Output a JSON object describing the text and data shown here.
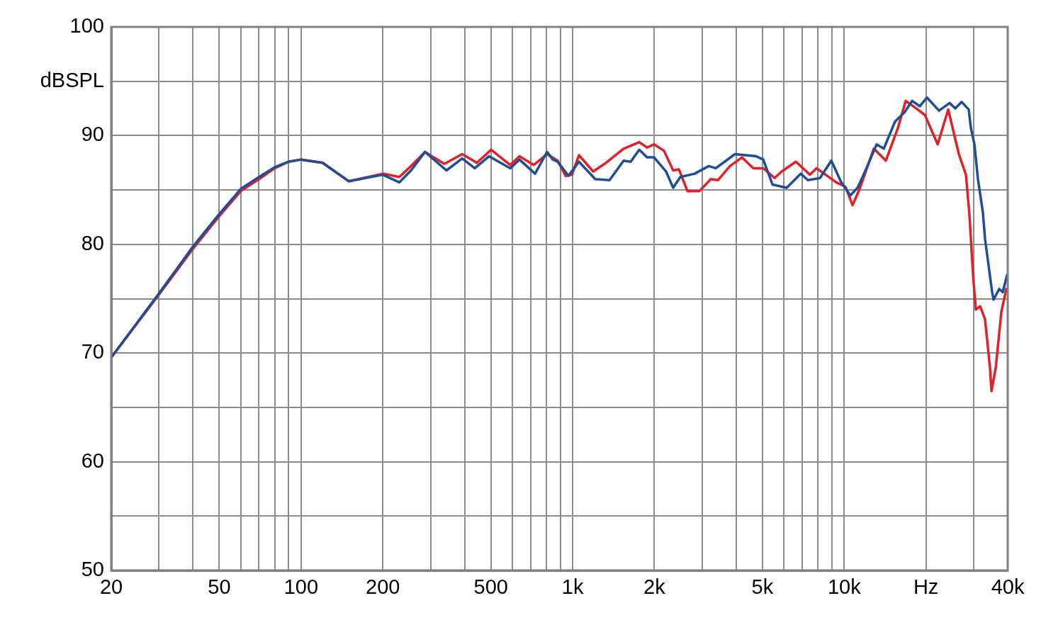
{
  "chart_data": {
    "type": "line",
    "log": "x",
    "grid": true,
    "marker": "none",
    "line_style": "solid",
    "xlim": [
      20,
      40000
    ],
    "ylim": [
      50,
      100
    ],
    "xticks": [
      20,
      {
        "value": 30,
        "label": null
      },
      {
        "value": 40,
        "label": null
      },
      50,
      {
        "value": 60,
        "label": null
      },
      {
        "value": 70,
        "label": null
      },
      {
        "value": 80,
        "label": null
      },
      {
        "value": 90,
        "label": null
      },
      100,
      200,
      {
        "value": 300,
        "label": null
      },
      {
        "value": 400,
        "label": null
      },
      500,
      {
        "value": 600,
        "label": null
      },
      {
        "value": 700,
        "label": null
      },
      {
        "value": 800,
        "label": null
      },
      {
        "value": 900,
        "label": null
      },
      {
        "value": 1000,
        "label": "1k"
      },
      {
        "value": 2000,
        "label": "2k"
      },
      {
        "value": 3000,
        "label": null
      },
      {
        "value": 4000,
        "label": null
      },
      {
        "value": 5000,
        "label": "5k"
      },
      {
        "value": 6000,
        "label": null
      },
      {
        "value": 7000,
        "label": null
      },
      {
        "value": 8000,
        "label": null
      },
      {
        "value": 9000,
        "label": null
      },
      {
        "value": 10000,
        "label": "10k"
      },
      {
        "value": 20000,
        "label": "Hz"
      },
      {
        "value": 30000,
        "label": null
      },
      {
        "value": 40000,
        "label": "40k"
      }
    ],
    "yticks": [
      50,
      {
        "value": 55,
        "label": null
      },
      60,
      {
        "value": 65,
        "label": null
      },
      70,
      {
        "value": 75,
        "label": null
      },
      80,
      {
        "value": 85,
        "label": null
      },
      90,
      {
        "value": 95,
        "label": "dBSPL"
      },
      100
    ],
    "series": [
      {
        "color": "#1f4e96",
        "x": [
          20,
          30,
          40,
          50,
          60,
          70,
          80,
          90,
          100,
          120,
          150,
          200,
          230,
          254,
          286,
          343,
          392,
          436,
          492,
          589,
          637,
          727,
          805,
          845,
          881,
          965,
          1055,
          1211,
          1367,
          1541,
          1636,
          1759,
          1879,
          1995,
          2208,
          2345,
          2492,
          2812,
          3170,
          3365,
          3959,
          4742,
          5033,
          5444,
          6138,
          6923,
          7348,
          8143,
          8966,
          9752,
          10541,
          11192,
          11886,
          13164,
          13983,
          15389,
          16743,
          17788,
          18992,
          20176,
          22346,
          24444,
          25646,
          27068,
          28746,
          29266,
          30160,
          31076,
          32414,
          33000,
          35049,
          35471,
          37218,
          38359,
          39800
        ],
        "values": [
          69.6,
          75.5,
          79.8,
          82.8,
          85.1,
          86.2,
          87.1,
          87.6,
          87.8,
          87.5,
          85.8,
          86.4,
          85.7,
          86.8,
          88.5,
          86.8,
          87.9,
          87.0,
          88.1,
          87.0,
          87.8,
          86.5,
          88.5,
          87.8,
          87.6,
          86.3,
          87.6,
          86.0,
          85.9,
          87.7,
          87.6,
          88.7,
          88.0,
          88.0,
          86.7,
          85.2,
          86.2,
          86.5,
          87.2,
          87.0,
          88.3,
          88.1,
          87.8,
          85.5,
          85.2,
          86.5,
          85.9,
          86.1,
          87.7,
          85.7,
          84.5,
          85.2,
          86.6,
          89.2,
          88.8,
          91.3,
          92.2,
          93.2,
          92.7,
          93.5,
          92.3,
          93.0,
          92.5,
          93.1,
          92.4,
          90.7,
          89.2,
          86.0,
          82.9,
          80.5,
          75.6,
          74.9,
          75.9,
          75.6,
          77.2
        ]
      },
      {
        "color": "#e32027",
        "x": [
          20,
          30,
          40,
          50,
          60,
          70,
          80,
          90,
          100,
          120,
          150,
          200,
          230,
          254,
          286,
          337,
          392,
          444,
          501,
          589,
          637,
          718,
          805,
          881,
          942,
          994,
          1055,
          1190,
          1310,
          1541,
          1759,
          1879,
          1995,
          2170,
          2345,
          2462,
          2646,
          2931,
          3227,
          3427,
          3796,
          4203,
          4625,
          5033,
          5541,
          5886,
          6637,
          7482,
          7903,
          8648,
          9351,
          10105,
          10733,
          11395,
          12851,
          14237,
          15765,
          16843,
          18432,
          19815,
          22078,
          24154,
          26428,
          28064,
          28918,
          29803,
          30523,
          31645,
          33000,
          34426,
          34842,
          36120,
          37901,
          39534
        ],
        "values": [
          69.6,
          75.4,
          79.6,
          82.6,
          84.9,
          86.0,
          87.0,
          87.6,
          87.8,
          87.5,
          85.8,
          86.5,
          86.2,
          87.2,
          88.5,
          87.4,
          88.3,
          87.5,
          88.7,
          87.3,
          88.1,
          87.3,
          88.3,
          87.7,
          86.3,
          86.4,
          88.2,
          86.7,
          87.4,
          88.8,
          89.4,
          88.9,
          89.2,
          88.6,
          86.8,
          86.9,
          84.9,
          84.9,
          86.0,
          85.9,
          87.2,
          88.0,
          87.0,
          87.0,
          86.1,
          86.7,
          87.6,
          86.4,
          87.0,
          86.3,
          85.7,
          85.3,
          83.6,
          85.1,
          88.8,
          87.7,
          90.7,
          93.2,
          92.5,
          91.9,
          89.2,
          92.4,
          88.3,
          86.4,
          82.7,
          77.2,
          74.0,
          74.3,
          73.1,
          68.6,
          66.5,
          68.6,
          73.8,
          75.9
        ]
      }
    ]
  }
}
